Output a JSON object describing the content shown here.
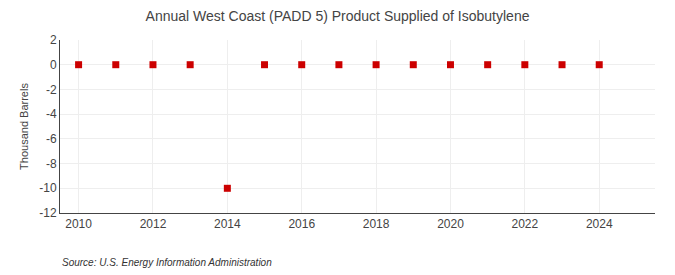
{
  "chart_data": {
    "type": "scatter",
    "title": "Annual West Coast (PADD 5) Product Supplied of Isobutylene",
    "y_label": "Thousand Barrels",
    "annotations": [
      "Source: U.S. Energy Information Administration"
    ],
    "x": [
      2010,
      2011,
      2012,
      2013,
      2014,
      2015,
      2016,
      2017,
      2018,
      2019,
      2020,
      2021,
      2022,
      2023,
      2024
    ],
    "values": [
      0,
      0,
      0,
      0,
      -10,
      0,
      0,
      0,
      0,
      0,
      0,
      0,
      0,
      0,
      0
    ],
    "color": "#cc0000",
    "marker": "square",
    "xlim": [
      2009.5,
      2025.5
    ],
    "xticks": [
      2010,
      2012,
      2014,
      2016,
      2018,
      2020,
      2022,
      2024
    ],
    "ylim": [
      -12,
      2
    ],
    "yticks": [
      2,
      0,
      -2,
      -4,
      -6,
      -8,
      -10,
      -12
    ],
    "grid": true
  }
}
